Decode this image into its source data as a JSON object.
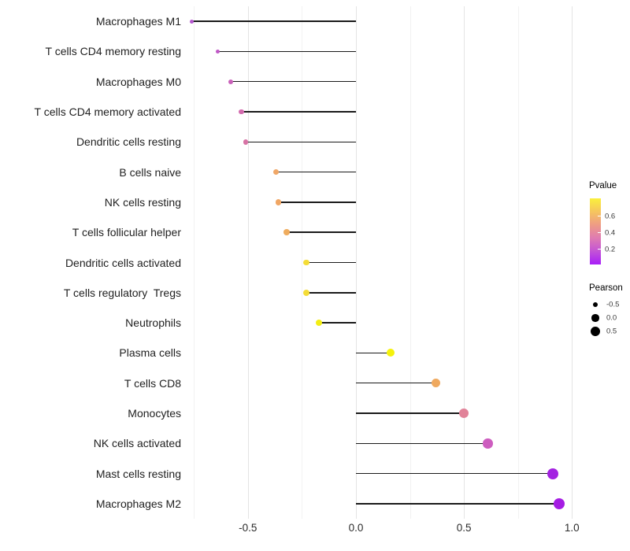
{
  "chart_data": {
    "type": "lollipop",
    "orientation": "horizontal",
    "title": "",
    "xlabel": "",
    "ylabel": "",
    "xlim": [
      -0.78,
      1.05
    ],
    "x_axis_tick_labels": [
      "-0.5",
      "0.0",
      "0.5",
      "1.0"
    ],
    "x_axis_tick_values": [
      -0.5,
      0.0,
      0.5,
      1.0
    ],
    "grid": "vertical major and minor gridlines, white background",
    "stem_baseline_x": 0.0,
    "points": [
      {
        "label": "Macrophages M1",
        "pearson": -0.76,
        "pvalue_approx": 0.18,
        "color": "#B457CE"
      },
      {
        "label": "T cells CD4 memory resting",
        "pearson": -0.64,
        "pvalue_approx": 0.2,
        "color": "#C058C6"
      },
      {
        "label": "Macrophages M0",
        "pearson": -0.58,
        "pvalue_approx": 0.25,
        "color": "#C961BA"
      },
      {
        "label": "T cells CD4 memory activated",
        "pearson": -0.53,
        "pvalue_approx": 0.3,
        "color": "#D36BAE"
      },
      {
        "label": "Dendritic cells resting",
        "pearson": -0.51,
        "pvalue_approx": 0.32,
        "color": "#D773A5"
      },
      {
        "label": "B cells naive",
        "pearson": -0.37,
        "pvalue_approx": 0.45,
        "color": "#F0A767"
      },
      {
        "label": "NK cells resting",
        "pearson": -0.36,
        "pvalue_approx": 0.45,
        "color": "#F0A664"
      },
      {
        "label": "T cells follicular helper",
        "pearson": -0.32,
        "pvalue_approx": 0.48,
        "color": "#EFAC5E"
      },
      {
        "label": "Dendritic cells activated",
        "pearson": -0.23,
        "pvalue_approx": 0.6,
        "color": "#F4DC37"
      },
      {
        "label": "T cells regulatory  Tregs",
        "pearson": -0.23,
        "pvalue_approx": 0.6,
        "color": "#F4DC37"
      },
      {
        "label": "Neutrophils",
        "pearson": -0.17,
        "pvalue_approx": 0.7,
        "color": "#F3EE14"
      },
      {
        "label": "Plasma cells",
        "pearson": 0.16,
        "pvalue_approx": 0.72,
        "color": "#F5F20B"
      },
      {
        "label": "T cells CD8",
        "pearson": 0.37,
        "pvalue_approx": 0.47,
        "color": "#EFA95F"
      },
      {
        "label": "Monocytes",
        "pearson": 0.5,
        "pvalue_approx": 0.34,
        "color": "#E18399"
      },
      {
        "label": "NK cells activated",
        "pearson": 0.61,
        "pvalue_approx": 0.22,
        "color": "#CD5DBF"
      },
      {
        "label": "Mast cells resting",
        "pearson": 0.91,
        "pvalue_approx": 0.06,
        "color": "#A322E1"
      },
      {
        "label": "Macrophages M2",
        "pearson": 0.94,
        "pvalue_approx": 0.05,
        "color": "#A51CE3"
      }
    ],
    "legend": {
      "pvalue": {
        "title": "Pvalue",
        "tick_labels": [
          "0.6",
          "0.4",
          "0.2"
        ],
        "gradient_top_to_bottom": [
          "#FAF03C",
          "#F6C55E",
          "#EE9C85",
          "#DF7BB2",
          "#C353D6",
          "#A81EF8"
        ],
        "value_top": 0.8,
        "value_bottom": 0.03
      },
      "pearson": {
        "title": "Pearson",
        "entries": [
          {
            "label": "-0.5",
            "value": -0.5
          },
          {
            "label": "0.0",
            "value": 0.0
          },
          {
            "label": "0.5",
            "value": 0.5
          }
        ],
        "dot_color": "#000000"
      }
    }
  },
  "colors": {
    "stem": "#1a1a1a",
    "grid_major": "#e4e4e4",
    "grid_minor": "#f2f2f2",
    "background": "#ffffff"
  }
}
